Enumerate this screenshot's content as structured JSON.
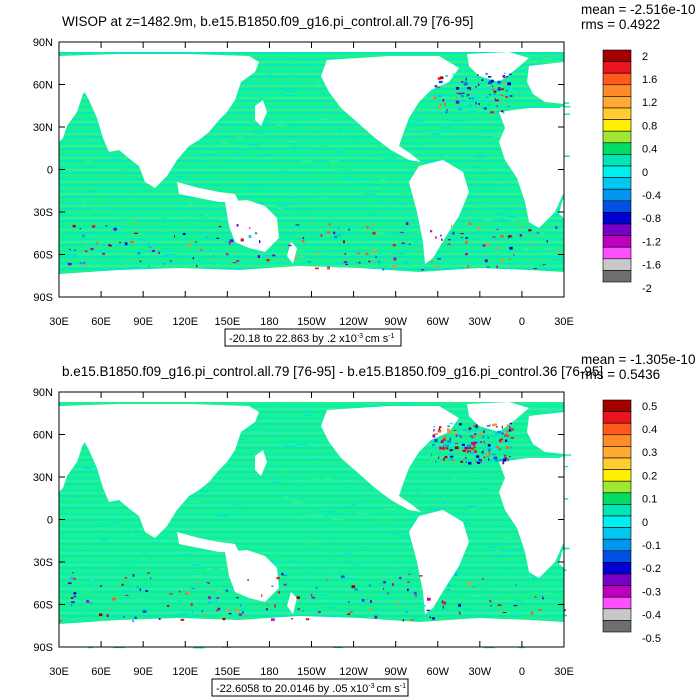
{
  "panels": [
    {
      "title": "WISOP at z=1482.9m, b.e15.B1850.f09_g16.pi_control.all.79 [76-95]",
      "mean_text": "mean = -2.516e-10",
      "rms_text": "rms = 0.4922",
      "range_prefix": "-20.18 to 22.863 by .2 x10",
      "range_units": "cm s",
      "colorbar_labels": [
        "2",
        "1.6",
        "1.2",
        "0.8",
        "0.4",
        "0",
        "-0.4",
        "-0.8",
        "-1.2",
        "-1.6",
        "-2"
      ]
    },
    {
      "title": "b.e15.B1850.f09_g16.pi_control.all.79 [76-95] - b.e15.B1850.f09_g16.pi_control.36 [76-95]",
      "mean_text": "mean = -1.305e-10",
      "rms_text": "rms = 0.5436",
      "range_prefix": "-22.6058 to 20.0146 by .05 x10",
      "range_units": "cm s",
      "colorbar_labels": [
        "0.5",
        "0.4",
        "0.3",
        "0.2",
        "0.1",
        "0",
        "-0.1",
        "-0.2",
        "-0.3",
        "-0.4",
        "-0.5"
      ]
    }
  ],
  "range_exponent": "-3",
  "range_unit_exponent": "-1",
  "lat_labels": [
    "90N",
    "60N",
    "30N",
    "0",
    "30S",
    "60S",
    "90S"
  ],
  "lon_labels": [
    "30E",
    "60E",
    "90E",
    "120E",
    "150E",
    "180",
    "150W",
    "120W",
    "90W",
    "60W",
    "30W",
    "0",
    "30E"
  ],
  "colorbar_colors": [
    "#a50000",
    "#e8141e",
    "#ff5a1e",
    "#ff8c28",
    "#ffaa32",
    "#ffcd32",
    "#fff000",
    "#a0e632",
    "#00dc64",
    "#00e6b4",
    "#00f0f0",
    "#00c8f0",
    "#0096f0",
    "#0050e6",
    "#0000d2",
    "#7800c8",
    "#be00be",
    "#ff50ff",
    "#c8c8c8",
    "#6e6e6e"
  ],
  "ocean_colors": [
    "#1ef08c",
    "#00eebe",
    "#2ff0a0",
    "#00e6c8"
  ]
}
